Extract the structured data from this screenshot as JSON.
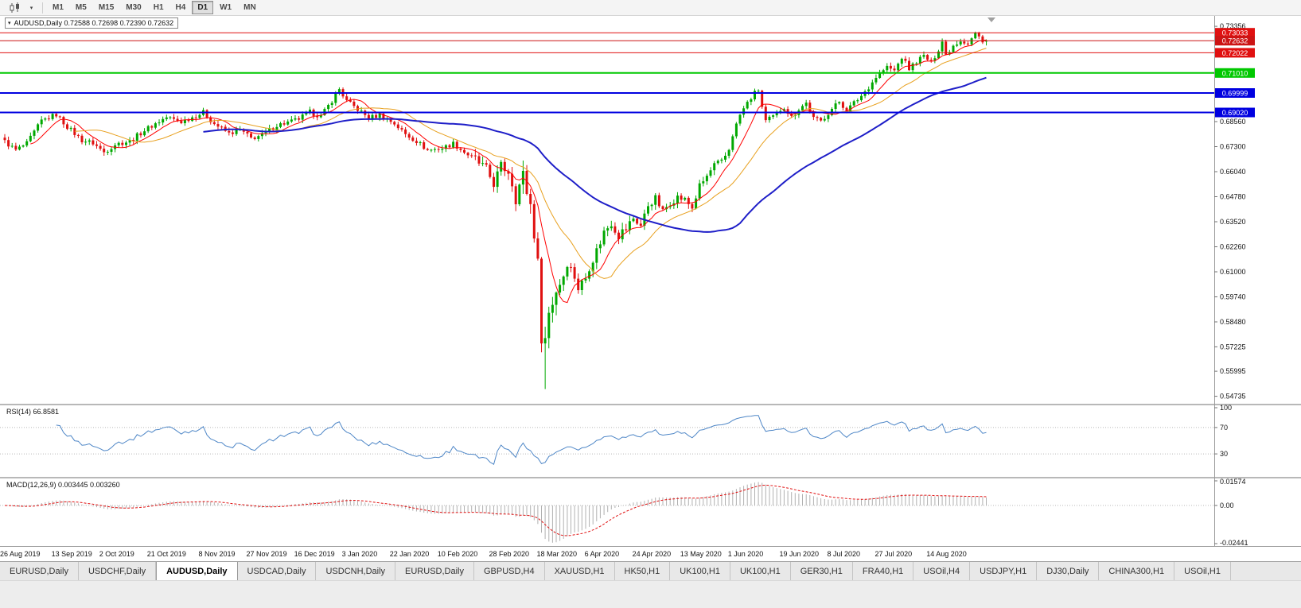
{
  "toolbar": {
    "timeframes": [
      {
        "label": "M1"
      },
      {
        "label": "M5"
      },
      {
        "label": "M15"
      },
      {
        "label": "M30"
      },
      {
        "label": "H1"
      },
      {
        "label": "H4"
      },
      {
        "label": "D1",
        "active": true
      },
      {
        "label": "W1"
      },
      {
        "label": "MN"
      }
    ]
  },
  "chart": {
    "symbol": "AUDUSD,Daily",
    "title": "AUDUSD,Daily 0.72588 0.72698 0.72390 0.72632",
    "ohlc": {
      "open": "0.72588",
      "high": "0.72698",
      "low": "0.72390",
      "close": "0.72632"
    },
    "colors": {
      "bull": "#00a800",
      "bear": "#e01010",
      "ma_fast": "#ff0000",
      "ma_mid": "#e8a01e",
      "ma_slow": "#1e1ec8"
    },
    "y_axis_ticks": [
      "0.73356",
      "0.68560",
      "0.67300",
      "0.66040",
      "0.64780",
      "0.63520",
      "0.62260",
      "0.61000",
      "0.59740",
      "0.58480",
      "0.57225",
      "0.55995",
      "0.54735"
    ],
    "x_axis_labels": [
      {
        "bar": 0,
        "label": "26 Aug 2019"
      },
      {
        "bar": 14,
        "label": "13 Sep 2019"
      },
      {
        "bar": 27,
        "label": "2 Oct 2019"
      },
      {
        "bar": 40,
        "label": "21 Oct 2019"
      },
      {
        "bar": 54,
        "label": "8 Nov 2019"
      },
      {
        "bar": 67,
        "label": "27 Nov 2019"
      },
      {
        "bar": 80,
        "label": "16 Dec 2019"
      },
      {
        "bar": 93,
        "label": "3 Jan 2020"
      },
      {
        "bar": 106,
        "label": "22 Jan 2020"
      },
      {
        "bar": 119,
        "label": "10 Feb 2020"
      },
      {
        "bar": 133,
        "label": "28 Feb 2020"
      },
      {
        "bar": 146,
        "label": "18 Mar 2020"
      },
      {
        "bar": 159,
        "label": "6 Apr 2020"
      },
      {
        "bar": 172,
        "label": "24 Apr 2020"
      },
      {
        "bar": 185,
        "label": "13 May 2020"
      },
      {
        "bar": 198,
        "label": "1 Jun 2020"
      },
      {
        "bar": 212,
        "label": "19 Jun 2020"
      },
      {
        "bar": 225,
        "label": "8 Jul 2020"
      },
      {
        "bar": 238,
        "label": "27 Jul 2020"
      },
      {
        "bar": 252,
        "label": "14 Aug 2020"
      }
    ],
    "horizontal_lines": [
      {
        "price": 0.73033,
        "label": "0.73033",
        "color": "#e01010",
        "width": 1
      },
      {
        "price": 0.72632,
        "label": "0.72632",
        "color": "#cc1414",
        "width": 1,
        "role": "current-price"
      },
      {
        "price": 0.72022,
        "label": "0.72022",
        "color": "#e01010",
        "width": 1
      },
      {
        "price": 0.7101,
        "label": "0.71010",
        "color": "#00c800",
        "width": 2
      },
      {
        "price": 0.69999,
        "label": "0.69999",
        "color": "#0000e0",
        "width": 2
      },
      {
        "price": 0.6902,
        "label": "0.69020",
        "color": "#0000e0",
        "width": 2
      }
    ]
  },
  "rsi": {
    "label": "RSI(14) 66.8581",
    "value": "66.8581",
    "levels": [
      100,
      70,
      30
    ],
    "color": "#4f87c7"
  },
  "macd": {
    "label": "MACD(12,26,9) 0.003445 0.003260",
    "values": [
      "0.003445",
      "0.003260"
    ],
    "axis_ticks": [
      "0.01574",
      "0.00",
      "-0.02441"
    ],
    "hist_color": "#b0b0b0",
    "signal_color": "#e01010"
  },
  "tabs": {
    "items": [
      {
        "label": "EURUSD,Daily"
      },
      {
        "label": "USDCHF,Daily"
      },
      {
        "label": "AUDUSD,Daily",
        "active": true
      },
      {
        "label": "USDCAD,Daily"
      },
      {
        "label": "USDCNH,Daily"
      },
      {
        "label": "EURUSD,Daily"
      },
      {
        "label": "GBPUSD,H4"
      },
      {
        "label": "XAUUSD,H1"
      },
      {
        "label": "HK50,H1"
      },
      {
        "label": "UK100,H1"
      },
      {
        "label": "UK100,H1"
      },
      {
        "label": "GER30,H1"
      },
      {
        "label": "FRA40,H1"
      },
      {
        "label": "USOil,H4"
      },
      {
        "label": "USDJPY,H1"
      },
      {
        "label": "DJ30,Daily"
      },
      {
        "label": "CHINA300,H1"
      },
      {
        "label": "USOil,H1"
      }
    ]
  },
  "chart_data": {
    "type": "candlestick",
    "symbol": "AUDUSD",
    "timeframe": "Daily",
    "bars": 268,
    "y_range": [
      0.5452,
      0.7372
    ],
    "last_bar_ohlc": {
      "open": 0.72588,
      "high": 0.72698,
      "low": 0.7239,
      "close": 0.72632
    },
    "crash_low": {
      "bar": 147,
      "low": 0.551
    },
    "indicators": {
      "rsi_period": 14,
      "rsi_value": 66.8581,
      "macd_params": [
        12,
        26,
        9
      ],
      "macd_value": 0.003445,
      "macd_signal": 0.00326,
      "ma_periods": [
        8,
        20,
        55
      ]
    },
    "price_anchors": [
      [
        0,
        0.6755
      ],
      [
        3,
        0.6712
      ],
      [
        6,
        0.6745
      ],
      [
        10,
        0.686
      ],
      [
        14,
        0.6892
      ],
      [
        17,
        0.683
      ],
      [
        21,
        0.6762
      ],
      [
        24,
        0.6748
      ],
      [
        27,
        0.6702
      ],
      [
        30,
        0.6742
      ],
      [
        34,
        0.6758
      ],
      [
        38,
        0.6812
      ],
      [
        41,
        0.6846
      ],
      [
        44,
        0.6878
      ],
      [
        48,
        0.6855
      ],
      [
        52,
        0.6886
      ],
      [
        54,
        0.6902
      ],
      [
        57,
        0.6845
      ],
      [
        61,
        0.6796
      ],
      [
        64,
        0.6814
      ],
      [
        67,
        0.6772
      ],
      [
        70,
        0.6788
      ],
      [
        74,
        0.6838
      ],
      [
        78,
        0.6856
      ],
      [
        80,
        0.687
      ],
      [
        83,
        0.6904
      ],
      [
        86,
        0.6882
      ],
      [
        89,
        0.6962
      ],
      [
        91,
        0.702
      ],
      [
        93,
        0.6958
      ],
      [
        96,
        0.6918
      ],
      [
        99,
        0.6874
      ],
      [
        102,
        0.689
      ],
      [
        106,
        0.6846
      ],
      [
        109,
        0.6792
      ],
      [
        112,
        0.6758
      ],
      [
        115,
        0.6712
      ],
      [
        119,
        0.6722
      ],
      [
        122,
        0.6746
      ],
      [
        125,
        0.6702
      ],
      [
        128,
        0.6664
      ],
      [
        131,
        0.6612
      ],
      [
        133,
        0.6546
      ],
      [
        135,
        0.663
      ],
      [
        137,
        0.6606
      ],
      [
        139,
        0.6488
      ],
      [
        141,
        0.658
      ],
      [
        143,
        0.6438
      ],
      [
        144,
        0.6305
      ],
      [
        145,
        0.6128
      ],
      [
        146,
        0.5788
      ],
      [
        147,
        0.5762
      ],
      [
        148,
        0.5896
      ],
      [
        150,
        0.601
      ],
      [
        152,
        0.609
      ],
      [
        153,
        0.615
      ],
      [
        155,
        0.6078
      ],
      [
        156,
        0.6018
      ],
      [
        158,
        0.607
      ],
      [
        159,
        0.613
      ],
      [
        161,
        0.6206
      ],
      [
        163,
        0.63
      ],
      [
        165,
        0.635
      ],
      [
        167,
        0.6286
      ],
      [
        169,
        0.6316
      ],
      [
        171,
        0.637
      ],
      [
        173,
        0.6332
      ],
      [
        175,
        0.6436
      ],
      [
        177,
        0.647
      ],
      [
        179,
        0.6402
      ],
      [
        181,
        0.645
      ],
      [
        183,
        0.6476
      ],
      [
        185,
        0.6462
      ],
      [
        187,
        0.6422
      ],
      [
        189,
        0.653
      ],
      [
        191,
        0.658
      ],
      [
        193,
        0.6636
      ],
      [
        195,
        0.665
      ],
      [
        197,
        0.6716
      ],
      [
        198,
        0.679
      ],
      [
        200,
        0.689
      ],
      [
        202,
        0.695
      ],
      [
        204,
        0.7
      ],
      [
        205,
        0.7016
      ],
      [
        206,
        0.693
      ],
      [
        207,
        0.6858
      ],
      [
        209,
        0.688
      ],
      [
        211,
        0.6916
      ],
      [
        212,
        0.693
      ],
      [
        214,
        0.6878
      ],
      [
        216,
        0.692
      ],
      [
        218,
        0.695
      ],
      [
        220,
        0.6872
      ],
      [
        222,
        0.6858
      ],
      [
        224,
        0.69
      ],
      [
        225,
        0.692
      ],
      [
        227,
        0.6956
      ],
      [
        229,
        0.6912
      ],
      [
        231,
        0.695
      ],
      [
        233,
        0.6986
      ],
      [
        235,
        0.703
      ],
      [
        237,
        0.708
      ],
      [
        238,
        0.71
      ],
      [
        240,
        0.713
      ],
      [
        242,
        0.7112
      ],
      [
        244,
        0.718
      ],
      [
        246,
        0.7122
      ],
      [
        248,
        0.716
      ],
      [
        250,
        0.7186
      ],
      [
        252,
        0.7152
      ],
      [
        254,
        0.722
      ],
      [
        255,
        0.726
      ],
      [
        256,
        0.7192
      ],
      [
        258,
        0.724
      ],
      [
        260,
        0.7266
      ],
      [
        262,
        0.725
      ],
      [
        264,
        0.73
      ],
      [
        265,
        0.728
      ],
      [
        266,
        0.7252
      ],
      [
        267,
        0.72632
      ]
    ]
  }
}
